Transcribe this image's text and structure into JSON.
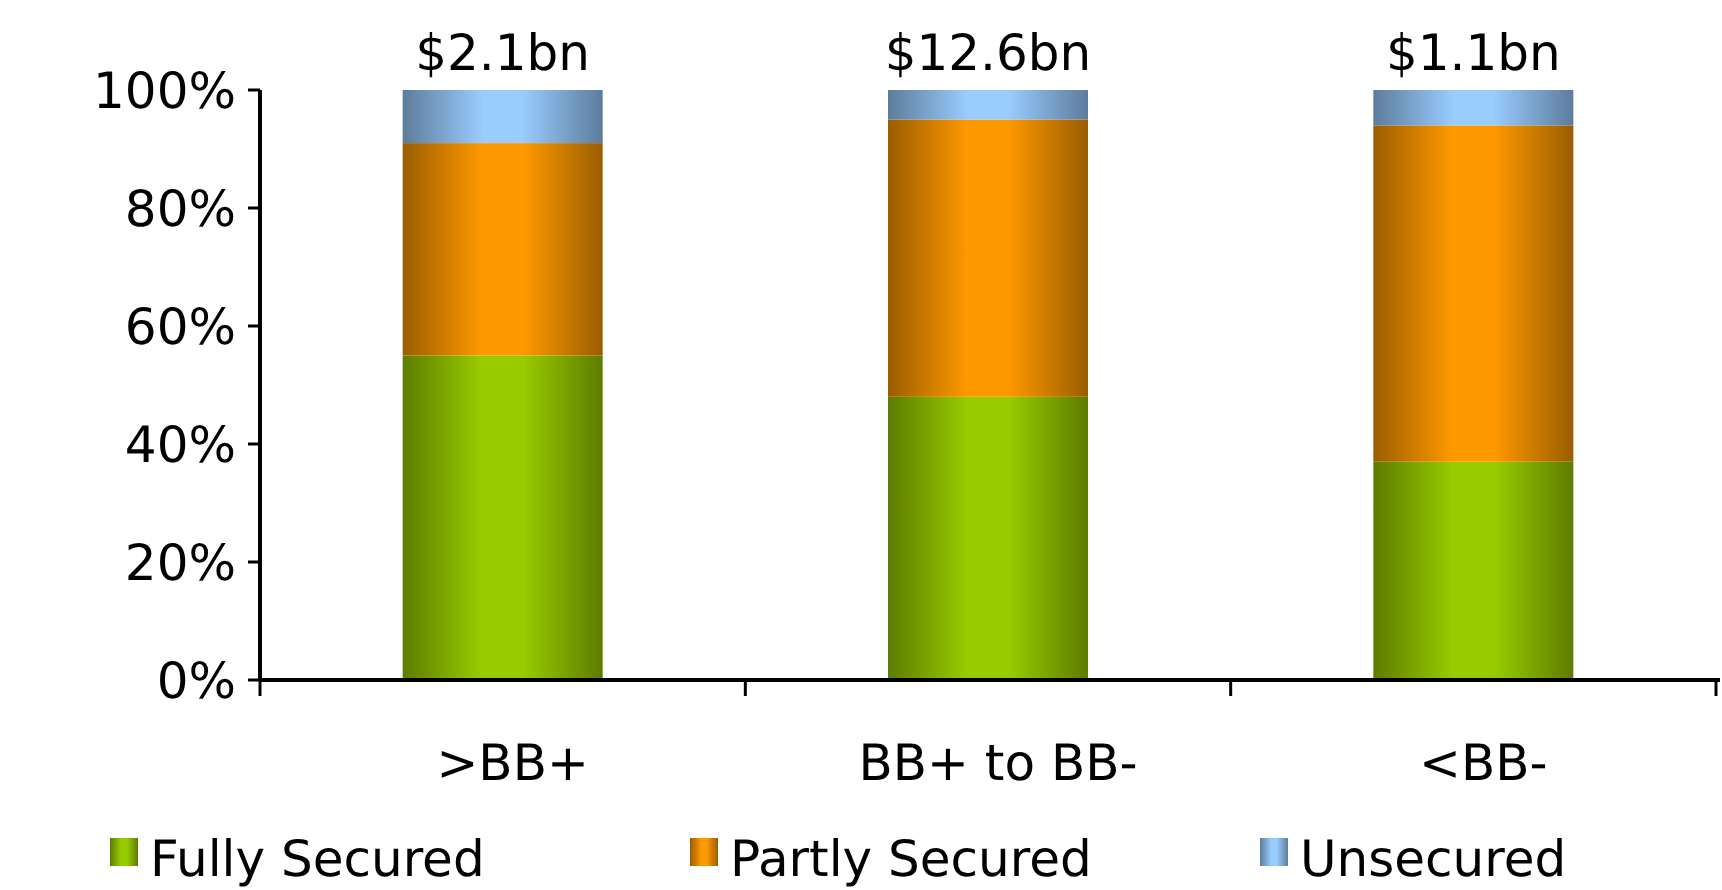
{
  "chart_data": {
    "type": "bar",
    "stacked": true,
    "categories": [
      ">BB+",
      "BB+ to BB-",
      "<BB-"
    ],
    "series": [
      {
        "name": "Fully Secured",
        "color": "#99cc00",
        "values": [
          55,
          48,
          37
        ]
      },
      {
        "name": "Partly Secured",
        "color": "#ff9900",
        "values": [
          36,
          47,
          57
        ]
      },
      {
        "name": "Unsecured",
        "color": "#99ccff",
        "values": [
          9,
          5,
          6
        ]
      }
    ],
    "ylim": [
      0,
      100
    ],
    "yticks": [
      {
        "value": 0,
        "label": "0%"
      },
      {
        "value": 20,
        "label": "20%"
      },
      {
        "value": 40,
        "label": "40%"
      },
      {
        "value": 60,
        "label": "60%"
      },
      {
        "value": 80,
        "label": "80%"
      },
      {
        "value": 100,
        "label": "100%"
      }
    ],
    "annotations": [
      {
        "text": "$2.1bn",
        "x": ">BB+",
        "y": 100
      },
      {
        "text": "$12.6bn",
        "x": "BB+ to BB-",
        "y": 100
      },
      {
        "text": "$1.1bn",
        "x": "<BB-",
        "y": 100
      }
    ],
    "grid": false,
    "legend": "bottom"
  }
}
